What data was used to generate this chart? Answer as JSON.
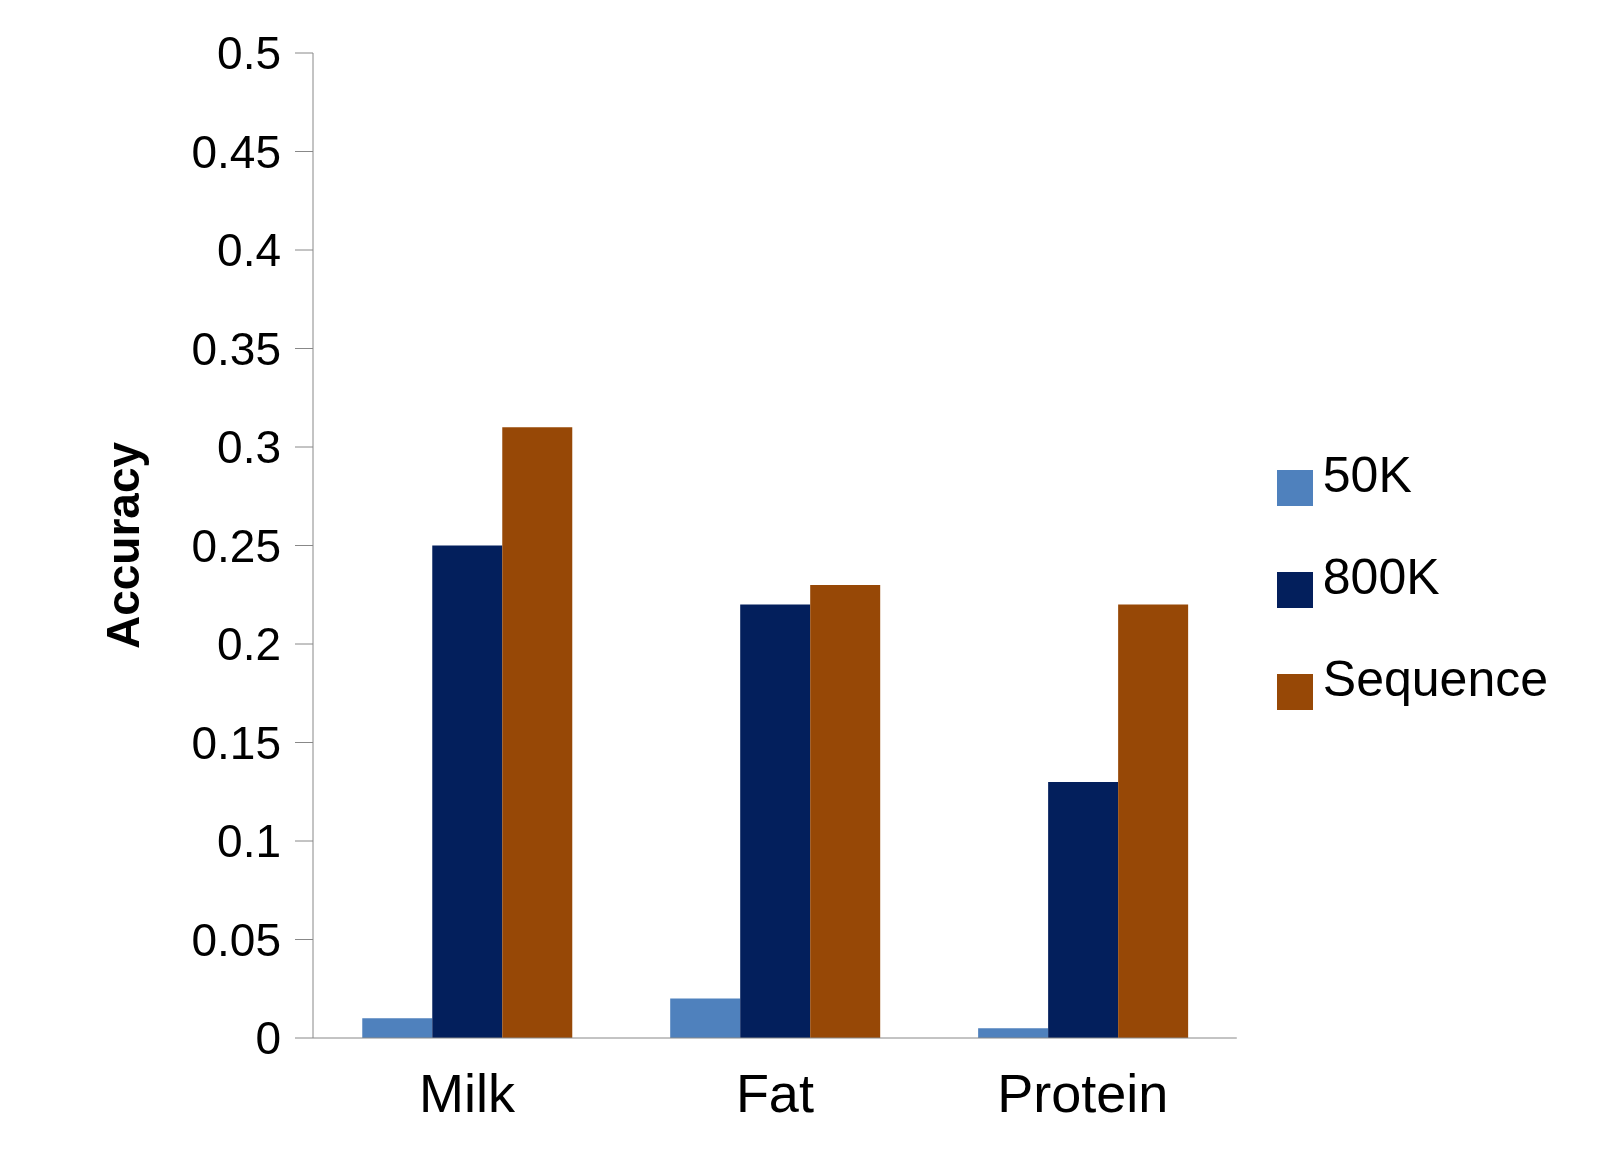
{
  "chart_data": {
    "type": "bar",
    "ylabel": "Accuracy",
    "categories": [
      "Milk",
      "Fat",
      "Protein"
    ],
    "series": [
      {
        "name": "50K",
        "color": "#4f81bd",
        "values": [
          0.01,
          0.02,
          0.005
        ]
      },
      {
        "name": "800K",
        "color": "#031f5c",
        "values": [
          0.25,
          0.22,
          0.13
        ]
      },
      {
        "name": "Sequence",
        "color": "#974806",
        "values": [
          0.31,
          0.23,
          0.22
        ]
      }
    ],
    "ylim": [
      0,
      0.5
    ],
    "yticks": [
      0,
      0.05,
      0.1,
      0.15,
      0.2,
      0.25,
      0.3,
      0.35,
      0.4,
      0.45,
      0.5
    ],
    "legend": "right"
  }
}
